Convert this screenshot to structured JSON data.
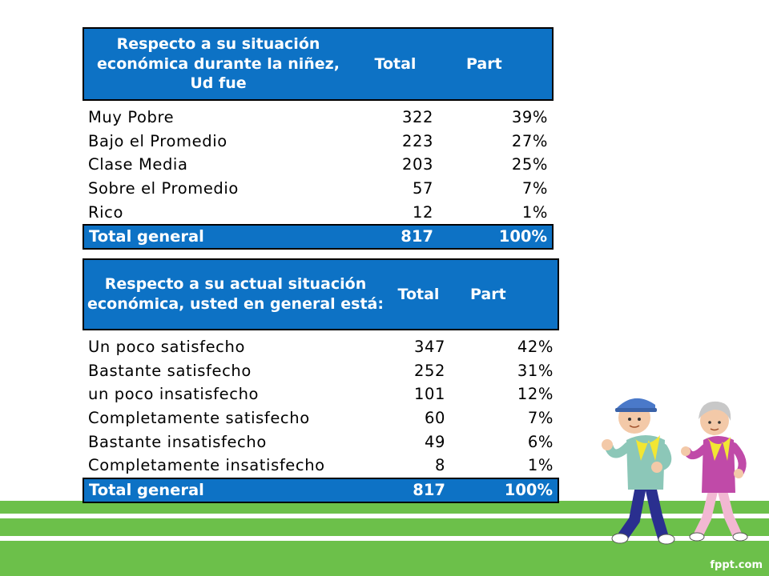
{
  "table1": {
    "header": {
      "category": "Respecto a su situación económica durante la niñez, Ud fue",
      "total": "Total",
      "part": "Part"
    },
    "rows": [
      {
        "label": "Muy Pobre",
        "total": "322",
        "part": "39%"
      },
      {
        "label": "Bajo el Promedio",
        "total": "223",
        "part": "27%"
      },
      {
        "label": "Clase Media",
        "total": "203",
        "part": "25%"
      },
      {
        "label": "Sobre el Promedio",
        "total": "57",
        "part": "7%"
      },
      {
        "label": "Rico",
        "total": "12",
        "part": "1%"
      }
    ],
    "footer": {
      "label": "Total general",
      "total": "817",
      "part": "100%"
    }
  },
  "table2": {
    "header": {
      "category": "Respecto a su actual situación económica, usted en general está:",
      "total": "Total",
      "part": "Part"
    },
    "rows": [
      {
        "label": "Un poco satisfecho",
        "total": "347",
        "part": "42%"
      },
      {
        "label": "Bastante satisfecho",
        "total": "252",
        "part": "31%"
      },
      {
        "label": "un poco insatisfecho",
        "total": "101",
        "part": "12%"
      },
      {
        "label": "Completamente satisfecho",
        "total": "60",
        "part": "7%"
      },
      {
        "label": "Bastante insatisfecho",
        "total": "49",
        "part": "6%"
      },
      {
        "label": "Completamente insatisfecho",
        "total": "8",
        "part": "1%"
      }
    ],
    "footer": {
      "label": "Total general",
      "total": "817",
      "part": "100%"
    }
  },
  "brand": "fppt.com",
  "colors": {
    "header_blue": "#0d72c5",
    "track_green": "#6cc04a"
  }
}
